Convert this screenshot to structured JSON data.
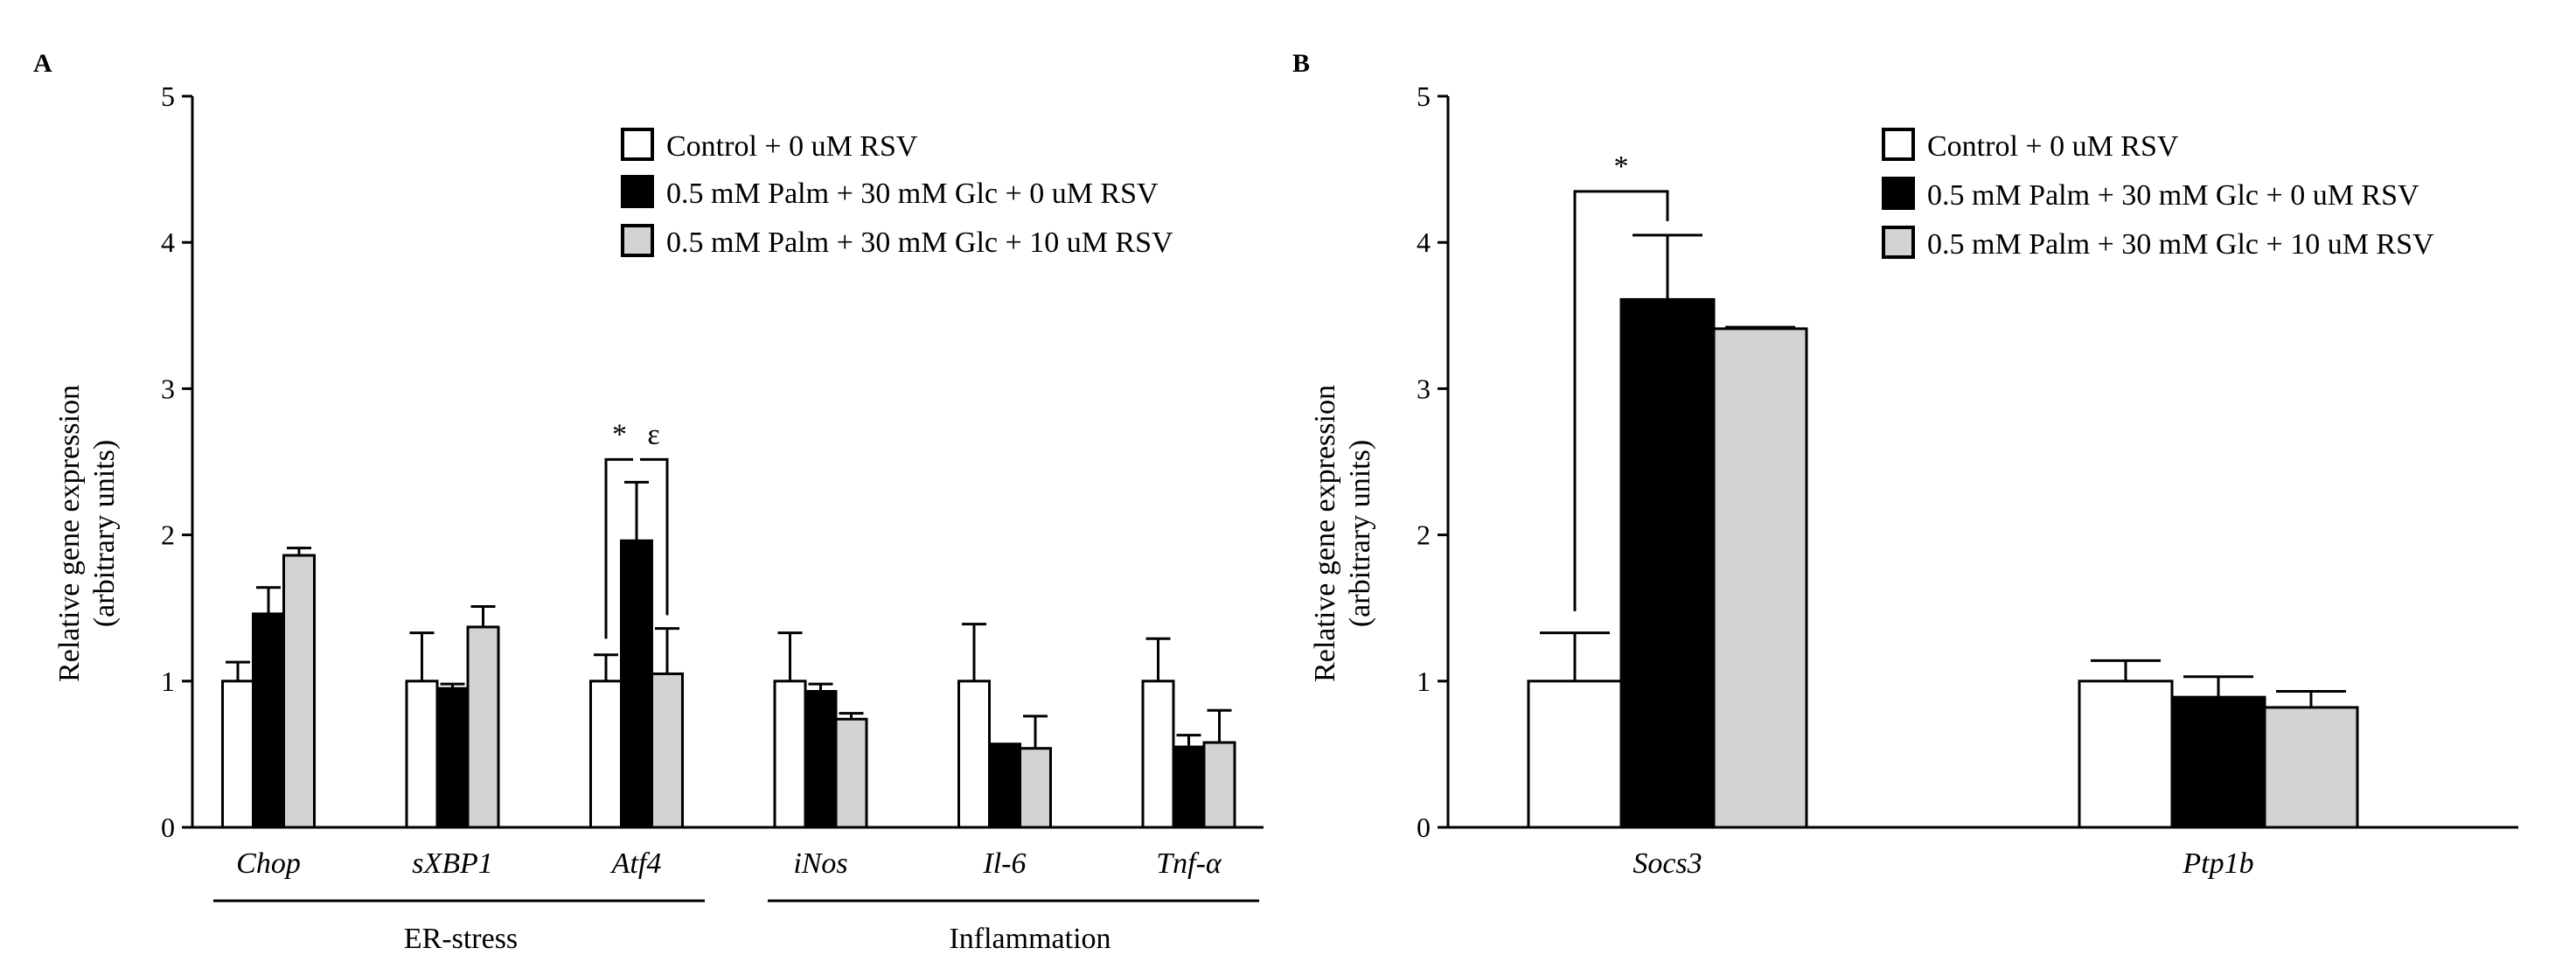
{
  "series_colors": [
    "#ffffff",
    "#000000",
    "#d3d3d3"
  ],
  "legend": [
    "Control + 0 uM RSV",
    "0.5 mM Palm + 30 mM Glc + 0 uM RSV",
    "0.5 mM Palm + 30 mM Glc + 10 uM RSV"
  ],
  "chart_data": [
    {
      "panel": "A",
      "type": "bar",
      "ylabel_line1": "Relative gene expression",
      "ylabel_line2": "(arbitrary units)",
      "ylim": [
        0,
        5
      ],
      "yticks": [
        "0",
        "1",
        "2",
        "3",
        "4",
        "5"
      ],
      "categories": [
        "Chop",
        "sXBP1",
        "Atf4",
        "iNos",
        "Il-6",
        "Tnf-α"
      ],
      "groups": [
        {
          "label": "ER-stress",
          "categories": [
            "Chop",
            "sXBP1",
            "Atf4"
          ]
        },
        {
          "label": "Inflammation",
          "categories": [
            "iNos",
            "Il-6",
            "Tnf-α"
          ]
        }
      ],
      "series": [
        {
          "name": "Control + 0 uM RSV",
          "values": [
            1.0,
            1.0,
            1.0,
            1.0,
            1.0,
            1.0
          ],
          "errors": [
            0.13,
            0.33,
            0.18,
            0.33,
            0.39,
            0.29
          ]
        },
        {
          "name": "0.5 mM Palm + 30 mM Glc + 0 uM RSV",
          "values": [
            1.46,
            0.95,
            1.96,
            0.93,
            0.57,
            0.55
          ],
          "errors": [
            0.18,
            0.03,
            0.4,
            0.05,
            0.0,
            0.08
          ]
        },
        {
          "name": "0.5 mM Palm + 30 mM Glc + 10 uM RSV",
          "values": [
            1.86,
            1.37,
            1.05,
            0.74,
            0.54,
            0.58
          ],
          "errors": [
            0.05,
            0.14,
            0.31,
            0.04,
            0.22,
            0.22
          ]
        }
      ],
      "annotations": [
        {
          "text": "*",
          "category": "Atf4",
          "from_series": 0,
          "to_series": 1
        },
        {
          "text": "ε",
          "category": "Atf4",
          "from_series": 1,
          "to_series": 2
        }
      ]
    },
    {
      "panel": "B",
      "type": "bar",
      "ylabel_line1": "Relative gene expression",
      "ylabel_line2": "(arbitrary units)",
      "ylim": [
        0,
        5
      ],
      "yticks": [
        "0",
        "1",
        "2",
        "3",
        "4",
        "5"
      ],
      "categories": [
        "Socs3",
        "Ptp1b"
      ],
      "series": [
        {
          "name": "Control + 0 uM RSV",
          "values": [
            1.0,
            1.0
          ],
          "errors": [
            0.33,
            0.14
          ]
        },
        {
          "name": "0.5 mM Palm + 30 mM Glc + 0 uM RSV",
          "values": [
            3.61,
            0.89
          ],
          "errors": [
            0.44,
            0.14
          ]
        },
        {
          "name": "0.5 mM Palm + 30 mM Glc + 10 uM RSV",
          "values": [
            3.41,
            0.82
          ],
          "errors": [
            0.01,
            0.11
          ]
        }
      ],
      "annotations": [
        {
          "text": "*",
          "category": "Socs3",
          "from_series": 0,
          "to_series": 1
        }
      ]
    }
  ]
}
